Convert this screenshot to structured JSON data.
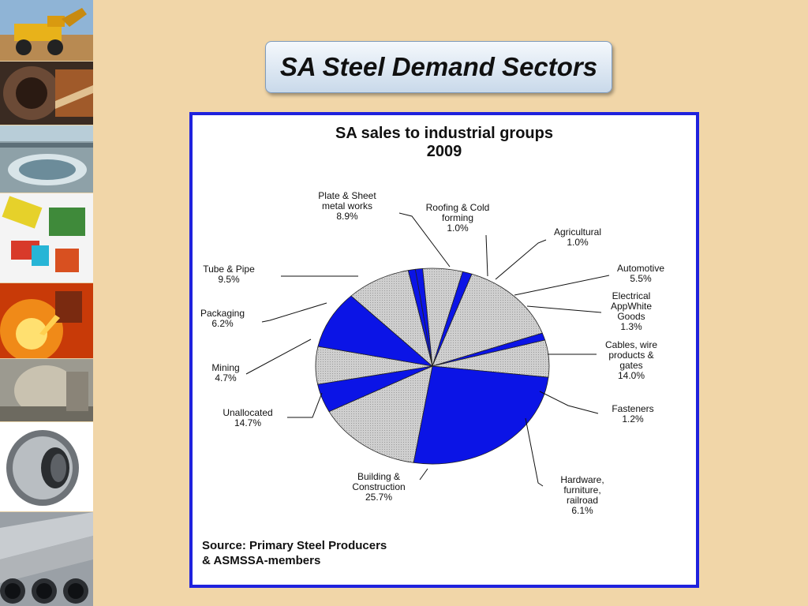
{
  "slide": {
    "title": "SA Steel Demand Sectors"
  },
  "photos": [
    {
      "icon": "mining-truck-image"
    },
    {
      "icon": "tunnel-mine-image"
    },
    {
      "icon": "thickener-plant-image"
    },
    {
      "icon": "processing-equipment-image"
    },
    {
      "icon": "molten-steel-pour-image"
    },
    {
      "icon": "mill-machinery-image"
    },
    {
      "icon": "steel-coil-image"
    },
    {
      "icon": "steel-pipes-image"
    }
  ],
  "colors": {
    "blue_slice": "#0b14e6",
    "grey_slice": "#c8c8c8",
    "panel_border": "#1f22dd",
    "background": "#f1d6a8"
  },
  "chart_data": {
    "type": "pie",
    "title": "SA sales to industrial groups",
    "subtitle": "2009",
    "start_angle_deg": -12,
    "direction": "clockwise",
    "slices": [
      {
        "label": "Roofing & Cold forming",
        "value": 1.0,
        "value_label": "1.0%",
        "fill": "blue"
      },
      {
        "label": "Agricultural",
        "value": 1.0,
        "value_label": "1.0%",
        "fill": "blue"
      },
      {
        "label": "Automotive",
        "value": 5.5,
        "value_label": "5.5%",
        "fill": "grey"
      },
      {
        "label": "Electrical AppWhite Goods",
        "value": 1.3,
        "value_label": "1.3%",
        "fill": "blue"
      },
      {
        "label": "Cables, wire products & gates",
        "value": 14.0,
        "value_label": "14.0%",
        "fill": "grey"
      },
      {
        "label": "Fasteners",
        "value": 1.2,
        "value_label": "1.2%",
        "fill": "blue"
      },
      {
        "label": "Hardware, furniture, railroad",
        "value": 6.1,
        "value_label": "6.1%",
        "fill": "grey"
      },
      {
        "label": "Building & Construction",
        "value": 25.7,
        "value_label": "25.7%",
        "fill": "blue"
      },
      {
        "label": "Unallocated",
        "value": 14.7,
        "value_label": "14.7%",
        "fill": "grey"
      },
      {
        "label": "Mining",
        "value": 4.7,
        "value_label": "4.7%",
        "fill": "blue"
      },
      {
        "label": "Packaging",
        "value": 6.2,
        "value_label": "6.2%",
        "fill": "grey"
      },
      {
        "label": "Tube & Pipe",
        "value": 9.5,
        "value_label": "9.5%",
        "fill": "blue"
      },
      {
        "label": "Plate & Sheet metal works",
        "value": 8.9,
        "value_label": "8.9%",
        "fill": "grey"
      }
    ],
    "source": [
      "Source: Primary  Steel Producers",
      "& ASMSSA-members"
    ]
  }
}
